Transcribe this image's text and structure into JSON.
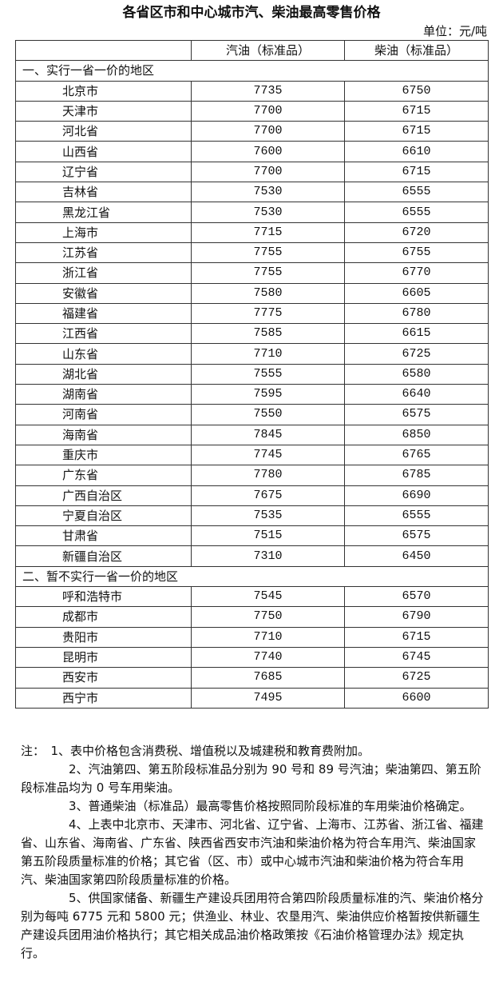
{
  "title": "各省区市和中心城市汽、柴油最高零售价格",
  "unit": "单位：元/吨",
  "table": {
    "headers": [
      "",
      "汽油（标准品）",
      "柴油（标准品）"
    ],
    "sections": [
      {
        "label": "一、实行一省一价的地区",
        "rows": [
          [
            "北京市",
            "7735",
            "6750"
          ],
          [
            "天津市",
            "7700",
            "6715"
          ],
          [
            "河北省",
            "7700",
            "6715"
          ],
          [
            "山西省",
            "7600",
            "6610"
          ],
          [
            "辽宁省",
            "7700",
            "6715"
          ],
          [
            "吉林省",
            "7530",
            "6555"
          ],
          [
            "黑龙江省",
            "7530",
            "6555"
          ],
          [
            "上海市",
            "7715",
            "6720"
          ],
          [
            "江苏省",
            "7755",
            "6755"
          ],
          [
            "浙江省",
            "7755",
            "6770"
          ],
          [
            "安徽省",
            "7580",
            "6605"
          ],
          [
            "福建省",
            "7775",
            "6780"
          ],
          [
            "江西省",
            "7585",
            "6615"
          ],
          [
            "山东省",
            "7710",
            "6725"
          ],
          [
            "湖北省",
            "7555",
            "6580"
          ],
          [
            "湖南省",
            "7595",
            "6640"
          ],
          [
            "河南省",
            "7550",
            "6575"
          ],
          [
            "海南省",
            "7845",
            "6850"
          ],
          [
            "重庆市",
            "7745",
            "6765"
          ],
          [
            "广东省",
            "7780",
            "6785"
          ],
          [
            "广西自治区",
            "7675",
            "6690"
          ],
          [
            "宁夏自治区",
            "7535",
            "6555"
          ],
          [
            "甘肃省",
            "7515",
            "6575"
          ],
          [
            "新疆自治区",
            "7310",
            "6450"
          ]
        ]
      },
      {
        "label": "二、暂不实行一省一价的地区",
        "rows": [
          [
            "呼和浩特市",
            "7545",
            "6570"
          ],
          [
            "成都市",
            "7750",
            "6790"
          ],
          [
            "贵阳市",
            "7710",
            "6715"
          ],
          [
            "昆明市",
            "7740",
            "6745"
          ],
          [
            "西安市",
            "7685",
            "6725"
          ],
          [
            "西宁市",
            "7495",
            "6600"
          ]
        ]
      }
    ]
  },
  "notes": [
    "注：　1、表中价格包含消费税、增值税以及城建税和教育费附加。",
    "2、汽油第四、第五阶段标准品分别为 90 号和 89 号汽油；柴油第四、第五阶段标准品均为 0 号车用柴油。",
    "3、普通柴油（标准品）最高零售价格按照同阶段标准的车用柴油价格确定。",
    "4、上表中北京市、天津市、河北省、辽宁省、上海市、江苏省、浙江省、福建省、山东省、海南省、广东省、陕西省西安市汽油和柴油价格为符合车用汽、柴油国家第五阶段质量标准的价格；其它省（区、市）或中心城市汽油和柴油价格为符合车用汽、柴油国家第四阶段质量标准的价格。",
    "5、供国家储备、新疆生产建设兵团用符合第四阶段质量标准的汽、柴油价格分别为每吨 6775 元和 5800 元；供渔业、林业、农垦用汽、柴油供应价格暂按供新疆生产建设兵团用油价格执行；其它相关成品油价格政策按《石油价格管理办法》规定执行。"
  ]
}
